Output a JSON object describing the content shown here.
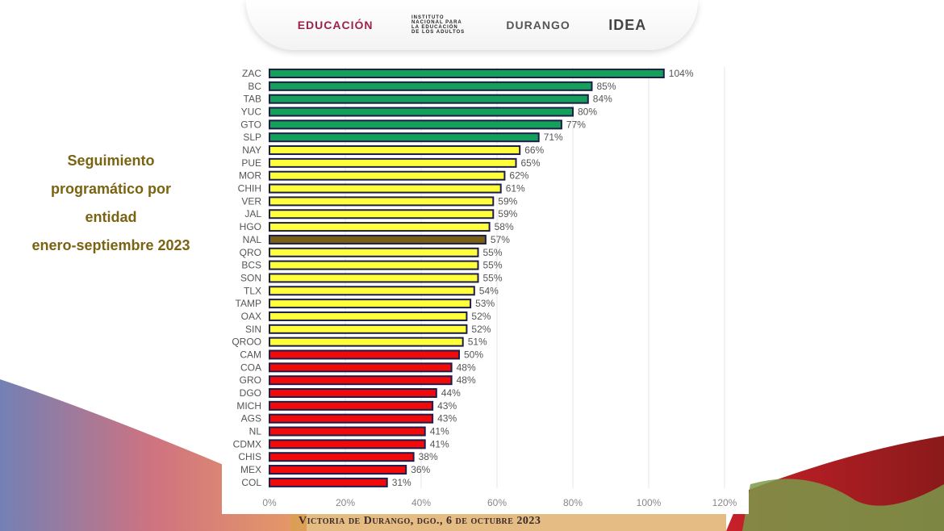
{
  "header": {
    "logos": [
      "EDUCACIÓN",
      "INSTITUTO NACIONAL PARA LA EDUCACIÓN DE LOS ADULTOS",
      "DURANGO",
      "IDEA"
    ]
  },
  "title_lines": [
    "Seguimiento",
    "programático por",
    "entidad",
    "enero-septiembre 2023"
  ],
  "footer": "Victoria de Durango, dgo., 6 de octubre 2023",
  "colors": {
    "green": "#12a05a",
    "yellow": "#ffff3a",
    "national": "#7a5f12",
    "red": "#f20a0a",
    "border": "#1d1d4a",
    "title": "#7a6412"
  },
  "chart_data": {
    "type": "bar",
    "orientation": "horizontal",
    "grid": true,
    "xlim": [
      0,
      120
    ],
    "xticks": [
      "0%",
      "20%",
      "40%",
      "60%",
      "80%",
      "100%",
      "120%"
    ],
    "categories": [
      "ZAC",
      "BC",
      "TAB",
      "YUC",
      "GTO",
      "SLP",
      "NAY",
      "PUE",
      "MOR",
      "CHIH",
      "VER",
      "JAL",
      "HGO",
      "NAL",
      "QRO",
      "BCS",
      "SON",
      "TLX",
      "TAMP",
      "OAX",
      "SIN",
      "QROO",
      "CAM",
      "COA",
      "GRO",
      "DGO",
      "MICH",
      "AGS",
      "NL",
      "CDMX",
      "CHIS",
      "MEX",
      "COL"
    ],
    "values": [
      104,
      85,
      84,
      80,
      77,
      71,
      66,
      65,
      62,
      61,
      59,
      59,
      58,
      57,
      55,
      55,
      55,
      54,
      53,
      52,
      52,
      51,
      50,
      48,
      48,
      44,
      43,
      43,
      41,
      41,
      38,
      36,
      31
    ],
    "labels": [
      "104%",
      "85%",
      "84%",
      "80%",
      "77%",
      "71%",
      "66%",
      "65%",
      "62%",
      "61%",
      "59%",
      "59%",
      "58%",
      "57%",
      "55%",
      "55%",
      "55%",
      "54%",
      "53%",
      "52%",
      "52%",
      "51%",
      "50%",
      "48%",
      "48%",
      "44%",
      "43%",
      "43%",
      "41%",
      "41%",
      "38%",
      "36%",
      "31%"
    ]
  }
}
